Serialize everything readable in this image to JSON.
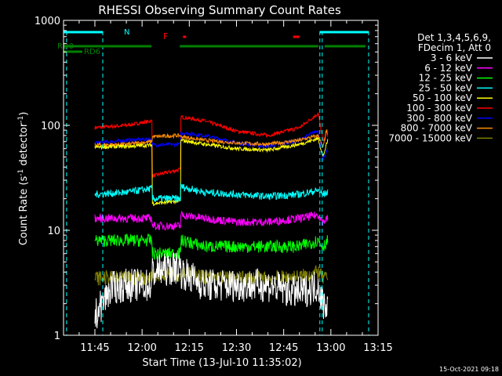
{
  "chart_data": {
    "type": "line",
    "title": "RHESSI Observing Summary Count Rates",
    "xlabel": "Start Time (13-Jul-10 11:35:02)",
    "ylabel": "Count Rate (s",
    "ylabel_sup": "-1",
    "ylabel_tail": " detector",
    "ylabel_sup2": "-1",
    "ylabel_end": ")",
    "yscale": "log",
    "xlim": [
      "11:35:02",
      "13:15:00"
    ],
    "ylim": [
      1,
      1000
    ],
    "grid": false,
    "x_ticks": [
      "11:45",
      "12:00",
      "12:15",
      "12:30",
      "12:45",
      "13:00",
      "13:15"
    ],
    "y_ticks": [
      "1",
      "10",
      "100",
      "1000"
    ],
    "legend": {
      "placement": "right",
      "header": [
        "Det 1,3,4,5,6,9,",
        "FDecim 1, Att 0"
      ],
      "entries": [
        {
          "label": "3 - 6 keV",
          "color": "#ffffff"
        },
        {
          "label": "6 - 12 keV",
          "color": "#ff00ff"
        },
        {
          "label": "12 - 25 keV",
          "color": "#00ff00"
        },
        {
          "label": "25 - 50 keV",
          "color": "#00ffff"
        },
        {
          "label": "50 - 100 keV",
          "color": "#ffff00"
        },
        {
          "label": "100 - 300 keV",
          "color": "#ff0000"
        },
        {
          "label": "300 - 800 keV",
          "color": "#0000ff"
        },
        {
          "label": "800 - 7000 keV",
          "color": "#ff8c00"
        },
        {
          "label": "7000 - 15000 keV",
          "color": "#808000"
        }
      ]
    },
    "flag_labels": {
      "n": "N",
      "f": "F",
      "rd0": "RD0",
      "rd6": "RD6"
    },
    "flags": {
      "N": [
        [
          "11:35",
          "11:47:30"
        ],
        [
          "12:56:30",
          "13:12"
        ]
      ],
      "F": [
        [
          "12:13",
          "12:14"
        ],
        [
          "12:48",
          "12:50"
        ]
      ],
      "RD0": [
        [
          "11:35",
          "12:03"
        ],
        [
          "12:12",
          "12:56"
        ],
        [
          "12:58",
          "13:11"
        ]
      ],
      "RD6": [
        [
          "11:35",
          "11:41"
        ]
      ]
    },
    "night_markers": [
      "11:47:30",
      "12:57:15"
    ],
    "saa_markers": [
      "11:36",
      "12:56:30",
      "13:12"
    ],
    "data_start": "11:45",
    "data_end": "12:59",
    "series": [
      {
        "name": "100 - 300 keV",
        "color": "#ff0000",
        "x": [
          "11:45",
          "11:55",
          "12:03",
          "12:03:30",
          "12:12",
          "12:12:30",
          "12:20",
          "12:30",
          "12:40",
          "12:50",
          "12:56",
          "12:57:30",
          "12:58:30",
          "12:59"
        ],
        "y": [
          95,
          100,
          110,
          33,
          38,
          120,
          110,
          88,
          80,
          95,
          130,
          70,
          84,
          80
        ]
      },
      {
        "name": "300 - 800 keV",
        "color": "#0000ff",
        "x": [
          "11:45",
          "11:55",
          "12:03",
          "12:03:30",
          "12:12",
          "12:12:30",
          "12:20",
          "12:30",
          "12:40",
          "12:50",
          "12:56",
          "12:57:30",
          "12:59"
        ],
        "y": [
          68,
          72,
          74,
          65,
          66,
          85,
          80,
          68,
          63,
          72,
          90,
          45,
          60
        ]
      },
      {
        "name": "800 - 7000 keV",
        "color": "#ff8c00",
        "x": [
          "11:45",
          "11:55",
          "12:03",
          "12:03:30",
          "12:12",
          "12:12:30",
          "12:20",
          "12:30",
          "12:40",
          "12:50",
          "12:56",
          "12:57:30",
          "12:58:30",
          "12:59"
        ],
        "y": [
          65,
          66,
          70,
          78,
          80,
          78,
          72,
          68,
          66,
          72,
          80,
          60,
          88,
          80
        ]
      },
      {
        "name": "50 - 100 keV",
        "color": "#ffff00",
        "x": [
          "11:45",
          "11:55",
          "12:03",
          "12:03:30",
          "12:12",
          "12:12:30",
          "12:20",
          "12:30",
          "12:40",
          "12:50",
          "12:56",
          "12:57:30",
          "12:59"
        ],
        "y": [
          62,
          63,
          65,
          18,
          19,
          72,
          66,
          60,
          58,
          66,
          75,
          50,
          72
        ]
      },
      {
        "name": "25 - 50 keV",
        "color": "#00ffff",
        "x": [
          "11:45",
          "11:55",
          "12:03",
          "12:03:30",
          "12:12",
          "12:12:30",
          "12:20",
          "12:30",
          "12:40",
          "12:50",
          "12:56",
          "12:57:30",
          "12:59"
        ],
        "y": [
          22,
          23,
          25,
          20,
          20,
          26,
          23,
          22,
          21,
          22,
          24,
          22,
          23
        ]
      },
      {
        "name": "6 - 12 keV",
        "color": "#ff00ff",
        "x": [
          "11:45",
          "11:55",
          "12:03",
          "12:03:30",
          "12:12",
          "12:12:30",
          "12:20",
          "12:30",
          "12:40",
          "12:50",
          "12:56",
          "12:57:30",
          "12:59"
        ],
        "y": [
          13,
          13,
          13,
          11,
          11,
          14,
          13,
          12,
          12,
          13,
          14,
          12,
          13
        ]
      },
      {
        "name": "12 - 25 keV",
        "color": "#00ff00",
        "x": [
          "11:45",
          "11:55",
          "12:03",
          "12:03:30",
          "12:12",
          "12:12:30",
          "12:20",
          "12:30",
          "12:40",
          "12:50",
          "12:56",
          "12:57:30",
          "12:59"
        ],
        "y": [
          8,
          8,
          8,
          6,
          6,
          8,
          7,
          7,
          7,
          7,
          8,
          7,
          8
        ]
      },
      {
        "name": "7000 - 15000 keV",
        "color": "#808000",
        "x": [
          "11:45",
          "11:55",
          "12:03",
          "12:03:30",
          "12:12",
          "12:12:30",
          "12:20",
          "12:30",
          "12:40",
          "12:50",
          "12:56",
          "12:57:30",
          "12:59"
        ],
        "y": [
          3.5,
          3.5,
          3.5,
          3.8,
          3.8,
          4,
          3.6,
          3.5,
          3.5,
          3.6,
          4,
          3.5,
          3.5
        ]
      },
      {
        "name": "3 - 6 keV",
        "color": "#ffffff",
        "x": [
          "11:45",
          "11:50",
          "11:55",
          "12:03",
          "12:03:30",
          "12:12",
          "12:12:30",
          "12:20",
          "12:30",
          "12:40",
          "12:50",
          "12:56",
          "12:57:30",
          "12:59"
        ],
        "y": [
          1.5,
          2.8,
          3,
          3,
          4,
          4.5,
          4,
          3,
          3,
          3,
          2.5,
          3,
          2,
          2
        ]
      }
    ]
  },
  "footer": {
    "timestamp": "15-Oct-2021 09:18"
  }
}
